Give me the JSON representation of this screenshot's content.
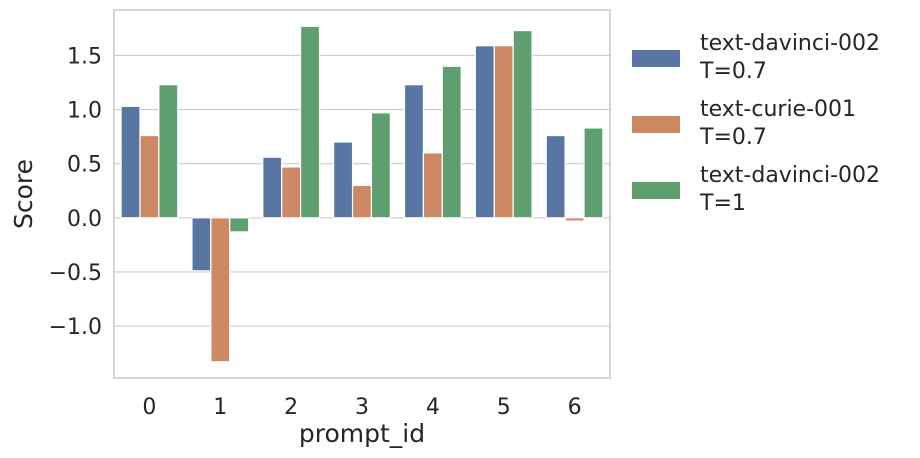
{
  "chart_data": {
    "type": "bar",
    "xlabel": "prompt_id",
    "ylabel": "Score",
    "categories": [
      "0",
      "1",
      "2",
      "3",
      "4",
      "5",
      "6"
    ],
    "ylim": [
      -1.48,
      1.92
    ],
    "yticks": [
      -1.0,
      -0.5,
      0.0,
      0.5,
      1.0,
      1.5
    ],
    "ytick_labels": [
      "−1.0",
      "−0.5",
      "0.0",
      "0.5",
      "1.0",
      "1.5"
    ],
    "grid": true,
    "legend_position": "outside-right",
    "series": [
      {
        "name": "text-davinci-002 T=0.7",
        "legend_lines": [
          "text-davinci-002",
          "T=0.7"
        ],
        "color": "#5875a4",
        "values": [
          1.03,
          -0.49,
          0.56,
          0.7,
          1.23,
          1.59,
          0.76
        ]
      },
      {
        "name": "text-curie-001 T=0.7",
        "legend_lines": [
          "text-curie-001",
          "T=0.7"
        ],
        "color": "#cc8963",
        "values": [
          0.76,
          -1.33,
          0.47,
          0.3,
          0.6,
          1.59,
          -0.03
        ]
      },
      {
        "name": "text-davinci-002 T=1",
        "legend_lines": [
          "text-davinci-002",
          "T=1"
        ],
        "color": "#5f9e6e",
        "values": [
          1.23,
          -0.13,
          1.77,
          0.97,
          1.4,
          1.73,
          0.83
        ]
      }
    ]
  }
}
